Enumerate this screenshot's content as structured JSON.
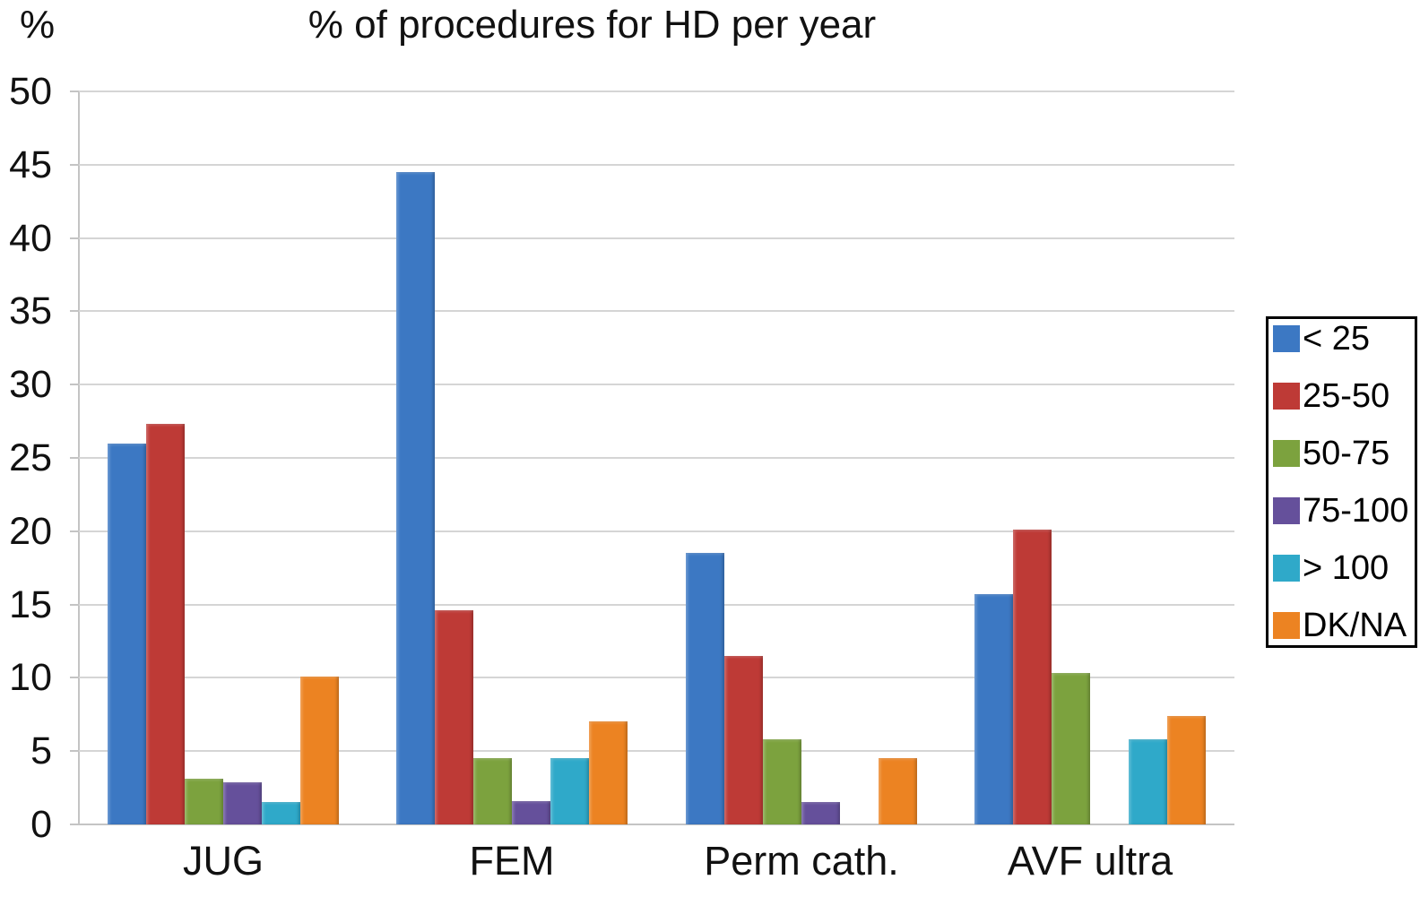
{
  "chart_data": {
    "type": "bar",
    "title": "% of procedures for HD per year",
    "ylabel": "%",
    "xlabel": "",
    "ylim": [
      0,
      50
    ],
    "ytick_step": 5,
    "yticks": [
      "0",
      "5",
      "10",
      "15",
      "20",
      "25",
      "30",
      "35",
      "40",
      "45",
      "50"
    ],
    "grid": "horizontal",
    "legend_position": "right",
    "categories": [
      "JUG",
      "FEM",
      "Perm cath.",
      "AVF ultra"
    ],
    "series": [
      {
        "name": "< 25",
        "color": "#3c78c3",
        "values": [
          26.0,
          44.5,
          18.5,
          15.7
        ]
      },
      {
        "name": "25-50",
        "color": "#be3a36",
        "values": [
          27.3,
          14.6,
          11.5,
          20.1
        ]
      },
      {
        "name": "50-75",
        "color": "#7ca23e",
        "values": [
          3.1,
          4.5,
          5.8,
          10.3
        ]
      },
      {
        "name": "75-100",
        "color": "#65509b",
        "values": [
          2.9,
          1.6,
          1.5,
          0
        ]
      },
      {
        "name": "> 100",
        "color": "#2fa9c9",
        "values": [
          1.5,
          4.5,
          0,
          5.8
        ]
      },
      {
        "name": "DK/NA",
        "color": "#ec8322",
        "values": [
          10.1,
          7.0,
          4.5,
          7.4
        ]
      }
    ]
  }
}
